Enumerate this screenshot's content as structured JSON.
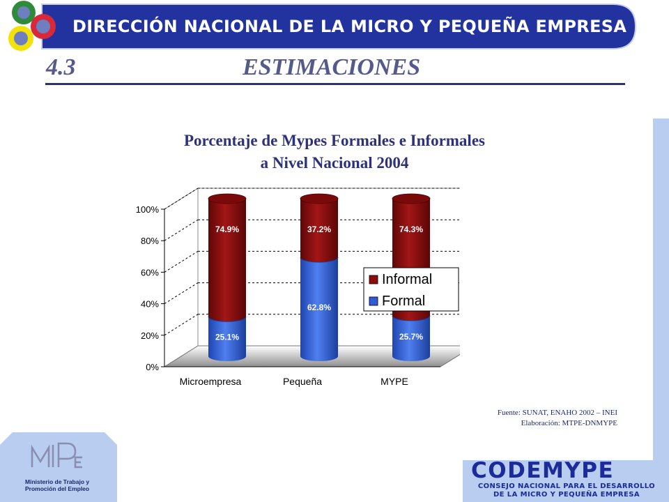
{
  "header": {
    "banner_title": "DIRECCIÓN NACIONAL DE LA MICRO Y PEQUEÑA EMPRESA",
    "section_number": "4.3",
    "section_title": "ESTIMACIONES"
  },
  "chart_data": {
    "type": "bar",
    "stacked": true,
    "percent": true,
    "three_d": true,
    "title": "Porcentaje de Mypes Formales e Informales a Nivel Nacional 2004",
    "title_lines": [
      "Porcentaje de Mypes Formales e Informales",
      "a Nivel Nacional 2004"
    ],
    "categories": [
      "Microempresa",
      "Pequeña",
      "MYPE"
    ],
    "series": [
      {
        "name": "Formal",
        "values": [
          25.1,
          62.8,
          25.7
        ],
        "labels": [
          "25.1%",
          "62.8%",
          "25.7%"
        ],
        "color": "#2f5cd6"
      },
      {
        "name": "Informal",
        "values": [
          74.9,
          37.2,
          74.3
        ],
        "labels": [
          "74.9%",
          "37.2%",
          "74.3%"
        ],
        "color": "#8b0d0d"
      }
    ],
    "legend_order": [
      "Informal",
      "Formal"
    ],
    "y_ticks": [
      "0%",
      "20%",
      "40%",
      "60%",
      "80%",
      "100%"
    ],
    "ylim": [
      0,
      100
    ],
    "grid": true,
    "legend_position": "right"
  },
  "footer": {
    "source": "Fuente: SUNAT,  ENAHO  2002 – INEI",
    "elaboration": "Elaboración: MTPE-DNMYPE",
    "ministry_line1": "Ministerio de Trabajo y",
    "ministry_line2": "Promoción del Empleo",
    "codemype": "CODEMYPE",
    "codemype_line1": "CONSEJO NACIONAL PARA EL DESARROLLO",
    "codemype_line2": "DE LA MICRO Y PEQUEÑA EMPRESA",
    "colors": {
      "navy": "#1c2a6b",
      "banner_blue": "#2233a0",
      "light_blue": "#b8cdef"
    }
  }
}
